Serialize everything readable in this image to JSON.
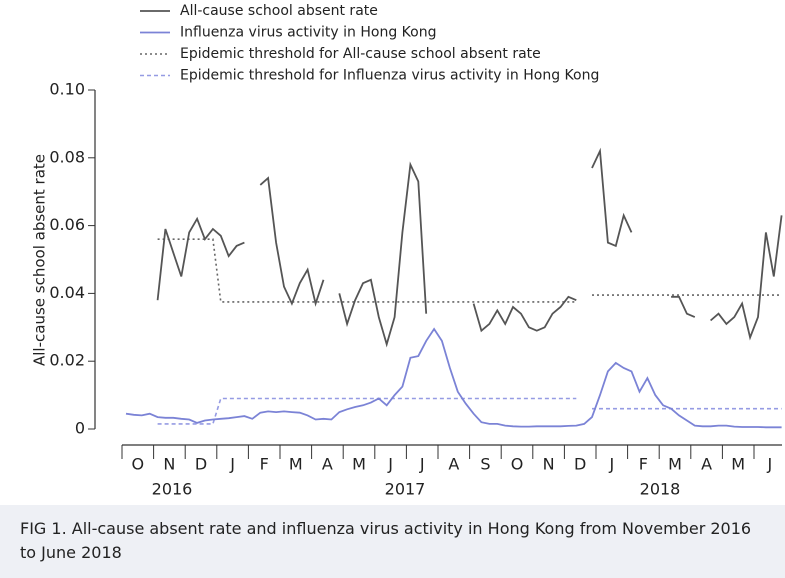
{
  "chart_data": {
    "type": "line",
    "ylabel": "All-cause school absent rate",
    "ylim": [
      0,
      0.1
    ],
    "yticks": [
      0,
      0.02,
      0.04,
      0.06,
      0.08,
      {
        "value": 0.1,
        "label": "0.10"
      }
    ],
    "legend": "top-left",
    "categories": [
      null,
      null,
      "O",
      null,
      null,
      null,
      "N",
      null,
      null,
      null,
      "D",
      null,
      null,
      null,
      "J",
      null,
      null,
      null,
      "F",
      null,
      null,
      null,
      "M",
      null,
      null,
      null,
      "A",
      null,
      null,
      null,
      "M",
      null,
      null,
      null,
      "J",
      null,
      null,
      null,
      "J",
      null,
      null,
      null,
      "A",
      null,
      null,
      null,
      "S",
      null,
      null,
      null,
      "O",
      null,
      null,
      null,
      "N",
      null,
      null,
      null,
      "D",
      null,
      null,
      null,
      "J",
      null,
      null,
      null,
      "F",
      null,
      null,
      null,
      "M",
      null,
      null,
      null,
      "A",
      null,
      null,
      null,
      "M",
      null,
      null,
      null,
      "J",
      null
    ],
    "year_labels": [
      "2016",
      "2017",
      "2018"
    ],
    "series": [
      {
        "name": "All-cause school absent rate",
        "color": "#555555",
        "style": "solid",
        "values": [
          null,
          null,
          null,
          null,
          0.038,
          0.059,
          0.052,
          0.045,
          0.058,
          0.062,
          0.056,
          0.059,
          0.057,
          0.051,
          0.054,
          0.055,
          null,
          0.072,
          0.074,
          0.055,
          0.042,
          0.037,
          0.043,
          0.047,
          0.037,
          0.044,
          null,
          0.04,
          0.031,
          0.038,
          0.043,
          0.044,
          0.033,
          0.025,
          0.033,
          0.058,
          0.078,
          0.073,
          0.034,
          null,
          null,
          null,
          null,
          null,
          0.037,
          0.029,
          0.031,
          0.035,
          0.031,
          0.036,
          0.034,
          0.03,
          0.029,
          0.03,
          0.034,
          0.036,
          0.039,
          0.038,
          null,
          0.077,
          0.082,
          0.055,
          0.054,
          0.063,
          0.058,
          null,
          null,
          null,
          null,
          0.039,
          0.039,
          0.034,
          0.033,
          null,
          0.032,
          0.034,
          0.031,
          0.033,
          0.037,
          0.027,
          0.033,
          0.058,
          0.045,
          0.063
        ]
      },
      {
        "name": "Influenza virus activity in Hong Kong",
        "color": "#7b83d6",
        "style": "solid",
        "values": [
          0.0045,
          0.0042,
          0.004,
          0.0045,
          0.0035,
          0.0033,
          0.0033,
          0.003,
          0.0028,
          0.0018,
          0.0025,
          0.0028,
          0.003,
          0.0032,
          0.0035,
          0.0038,
          0.003,
          0.0048,
          0.0052,
          0.005,
          0.0052,
          0.005,
          0.0048,
          0.004,
          0.0028,
          0.003,
          0.0028,
          0.005,
          0.0058,
          0.0065,
          0.007,
          0.0078,
          0.009,
          0.007,
          0.01,
          0.0125,
          0.021,
          0.0215,
          0.026,
          0.0295,
          0.026,
          0.018,
          0.011,
          0.0075,
          0.0045,
          0.002,
          0.0015,
          0.0015,
          0.001,
          0.0008,
          0.0007,
          0.0007,
          0.0008,
          0.0008,
          0.0008,
          0.0008,
          0.0009,
          0.001,
          0.0015,
          0.0035,
          0.01,
          0.017,
          0.0195,
          0.018,
          0.017,
          0.011,
          0.015,
          0.01,
          0.007,
          0.006,
          0.004,
          0.0025,
          0.001,
          0.0008,
          0.0008,
          0.001,
          0.001,
          0.0007,
          0.0006,
          0.0006,
          0.0006,
          0.0005,
          0.0005,
          0.0005
        ]
      },
      {
        "name": "Epidemic threshold for All-cause school absent rate",
        "color": "#666666",
        "style": "dotted",
        "values": [
          null,
          null,
          null,
          null,
          0.056,
          0.056,
          0.056,
          0.056,
          0.056,
          0.056,
          0.056,
          0.056,
          0.0375,
          0.0375,
          0.0375,
          0.0375,
          0.0375,
          0.0375,
          0.0375,
          0.0375,
          0.0375,
          0.0375,
          0.0375,
          0.0375,
          0.0375,
          0.0375,
          0.0375,
          0.0375,
          0.0375,
          0.0375,
          0.0375,
          0.0375,
          0.0375,
          0.0375,
          0.0375,
          0.0375,
          0.0375,
          0.0375,
          0.0375,
          0.0375,
          0.0375,
          0.0375,
          0.0375,
          0.0375,
          0.0375,
          0.0375,
          0.0375,
          0.0375,
          0.0375,
          0.0375,
          0.0375,
          0.0375,
          0.0375,
          0.0375,
          0.0375,
          0.0375,
          0.0375,
          0.0375,
          null,
          0.0395,
          0.0395,
          0.0395,
          0.0395,
          0.0395,
          0.0395,
          0.0395,
          0.0395,
          0.0395,
          0.0395,
          0.0395,
          0.0395,
          0.0395,
          0.0395,
          0.0395,
          0.0395,
          0.0395,
          0.0395,
          0.0395,
          0.0395,
          0.0395,
          0.0395,
          0.0395,
          0.0395,
          0.0395
        ]
      },
      {
        "name": "Epidemic threshold for Influenza virus activity in Hong Kong",
        "color": "#959be3",
        "style": "dashed",
        "values": [
          null,
          null,
          null,
          null,
          0.0015,
          0.0015,
          0.0015,
          0.0015,
          0.0015,
          0.0015,
          0.0015,
          0.0015,
          0.009,
          0.009,
          0.009,
          0.009,
          0.009,
          0.009,
          0.009,
          0.009,
          0.009,
          0.009,
          0.009,
          0.009,
          0.009,
          0.009,
          0.009,
          0.009,
          0.009,
          0.009,
          0.009,
          0.009,
          0.009,
          0.009,
          0.009,
          0.009,
          0.009,
          0.009,
          0.009,
          0.009,
          0.009,
          0.009,
          0.009,
          0.009,
          0.009,
          0.009,
          0.009,
          0.009,
          0.009,
          0.009,
          0.009,
          0.009,
          0.009,
          0.009,
          0.009,
          0.009,
          0.009,
          0.009,
          null,
          0.006,
          0.006,
          0.006,
          0.006,
          0.006,
          0.006,
          0.006,
          0.006,
          0.006,
          0.006,
          0.006,
          0.006,
          0.006,
          0.006,
          0.006,
          0.006,
          0.006,
          0.006,
          0.006,
          0.006,
          0.006,
          0.006,
          0.006,
          0.006,
          0.006
        ]
      }
    ],
    "caption": "FIG 1. All-cause absent rate and influenza virus activity in Hong Kong from November 2016 to June 2018"
  }
}
